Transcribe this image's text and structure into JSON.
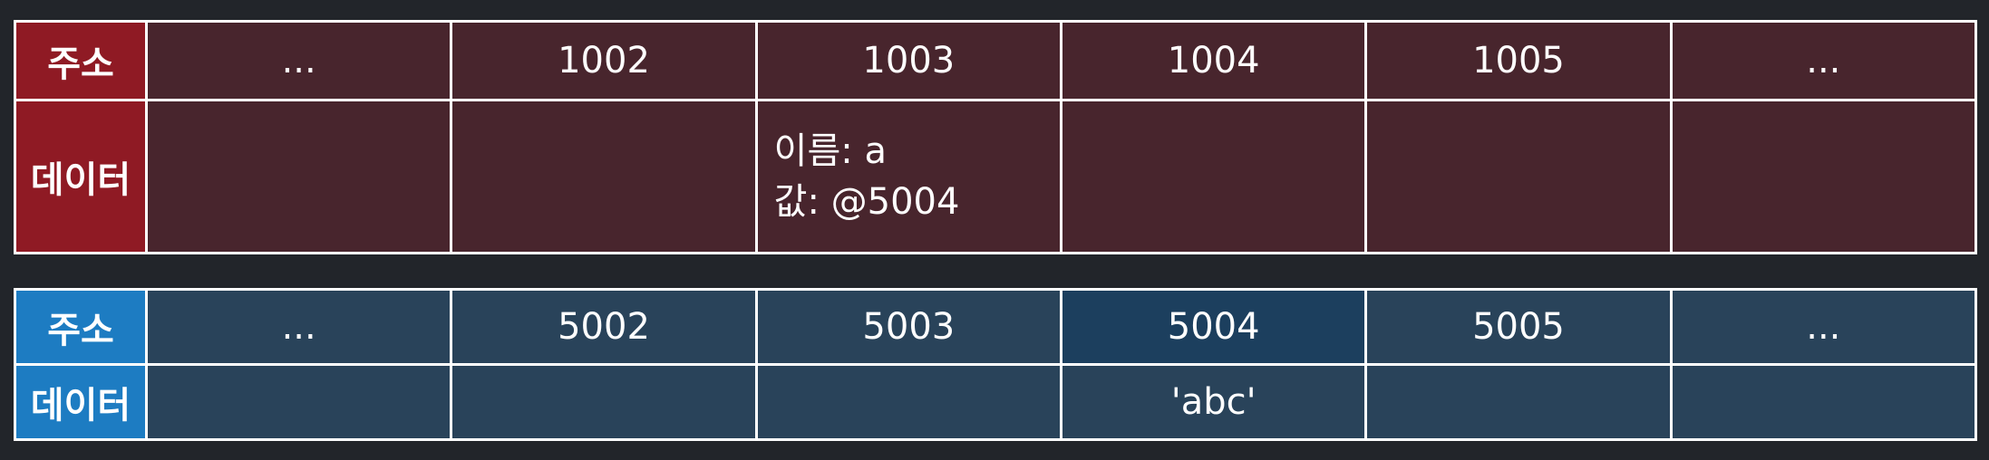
{
  "top_table": {
    "address_label": "주소",
    "data_label": "데이터",
    "addresses": [
      "...",
      "1002",
      "1003",
      "1004",
      "1005",
      "..."
    ],
    "data": [
      "",
      "",
      "",
      "",
      "",
      ""
    ],
    "cell_1003": {
      "name_line": "이름: a",
      "value_line": "값: @5004"
    }
  },
  "bottom_table": {
    "address_label": "주소",
    "data_label": "데이터",
    "addresses": [
      "...",
      "5002",
      "5003",
      "5004",
      "5005",
      "..."
    ],
    "data": [
      "",
      "",
      "",
      "'abc'",
      "",
      ""
    ]
  },
  "colors": {
    "top_label_bg": "#8f1a24",
    "top_cell_bg": "#48252d",
    "bottom_label_bg": "#1d7cc2",
    "bottom_cell_bg": "#29435a",
    "bottom_highlight_bg": "#1c3f5e",
    "border": "#ffffff"
  }
}
